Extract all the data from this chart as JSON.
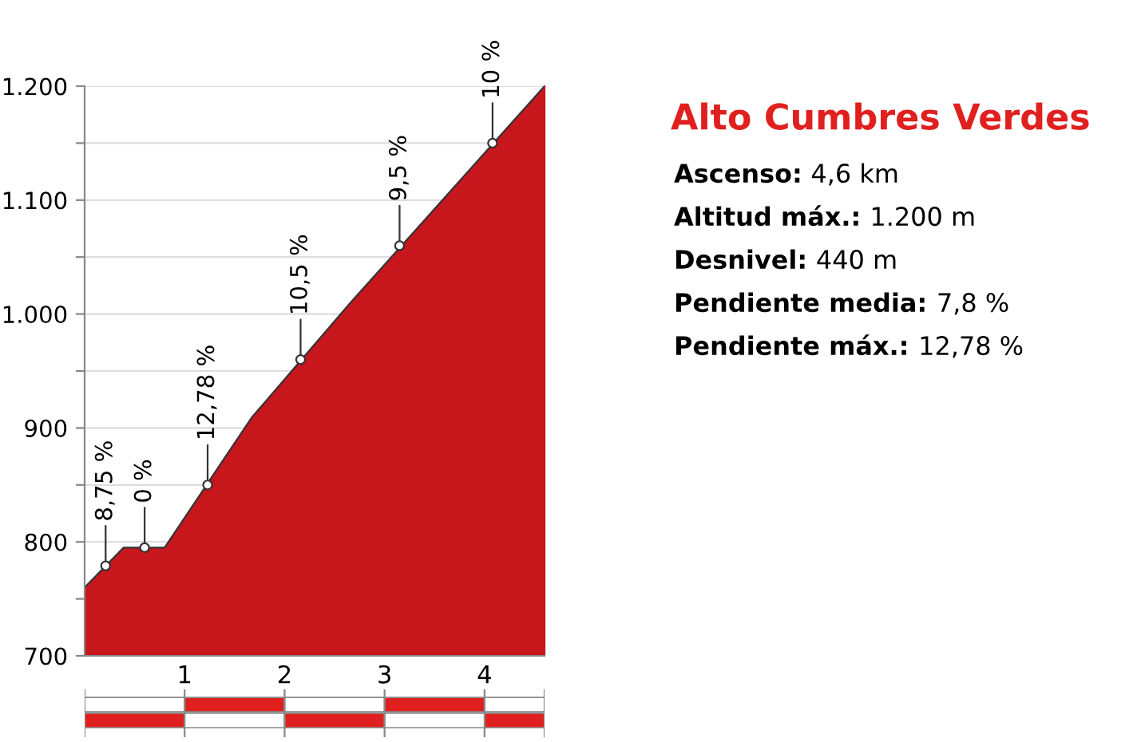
{
  "chart_data": {
    "type": "area",
    "title": "Alto Cumbres Verdes",
    "x": [
      0,
      0.39,
      0.8,
      1.67,
      2.66,
      4.6
    ],
    "series": [
      {
        "color": "#c8161d",
        "values": [
          760,
          795,
          795,
          909,
          1010,
          1200
        ]
      }
    ],
    "xlim": [
      0,
      4.6
    ],
    "xticks": [
      1,
      2,
      3,
      4
    ],
    "ylim": [
      700,
      1200
    ],
    "yticks": [
      {
        "value": 700,
        "label": "700"
      },
      {
        "value": 750,
        "label": null
      },
      {
        "value": 800,
        "label": "800"
      },
      {
        "value": 850,
        "label": null
      },
      {
        "value": 900,
        "label": "900"
      },
      {
        "value": 950,
        "label": null
      },
      {
        "value": 1000,
        "label": "1.000"
      },
      {
        "value": 1050,
        "label": null
      },
      {
        "value": 1100,
        "label": "1.100"
      },
      {
        "value": 1150,
        "label": null
      },
      {
        "value": 1200,
        "label": "1.200"
      }
    ],
    "grid": "y",
    "annotations": [
      {
        "text": "8,75 %",
        "x": 0.21,
        "y": 779
      },
      {
        "text": "0 %",
        "x": 0.6,
        "y": 795
      },
      {
        "text": "12,78 %",
        "x": 1.23,
        "y": 850
      },
      {
        "text": "10,5 %",
        "x": 2.16,
        "y": 960
      },
      {
        "text": "9,5 %",
        "x": 3.15,
        "y": 1060
      },
      {
        "text": "10 %",
        "x": 4.08,
        "y": 1150
      },
      "Ascenso: 4,6 km",
      "Altitud máx.: 1.200 m",
      "Desnivel: 440 m",
      "Pendiente media: 7,8 %",
      "Pendiente máx.: 12,78 %"
    ]
  }
}
